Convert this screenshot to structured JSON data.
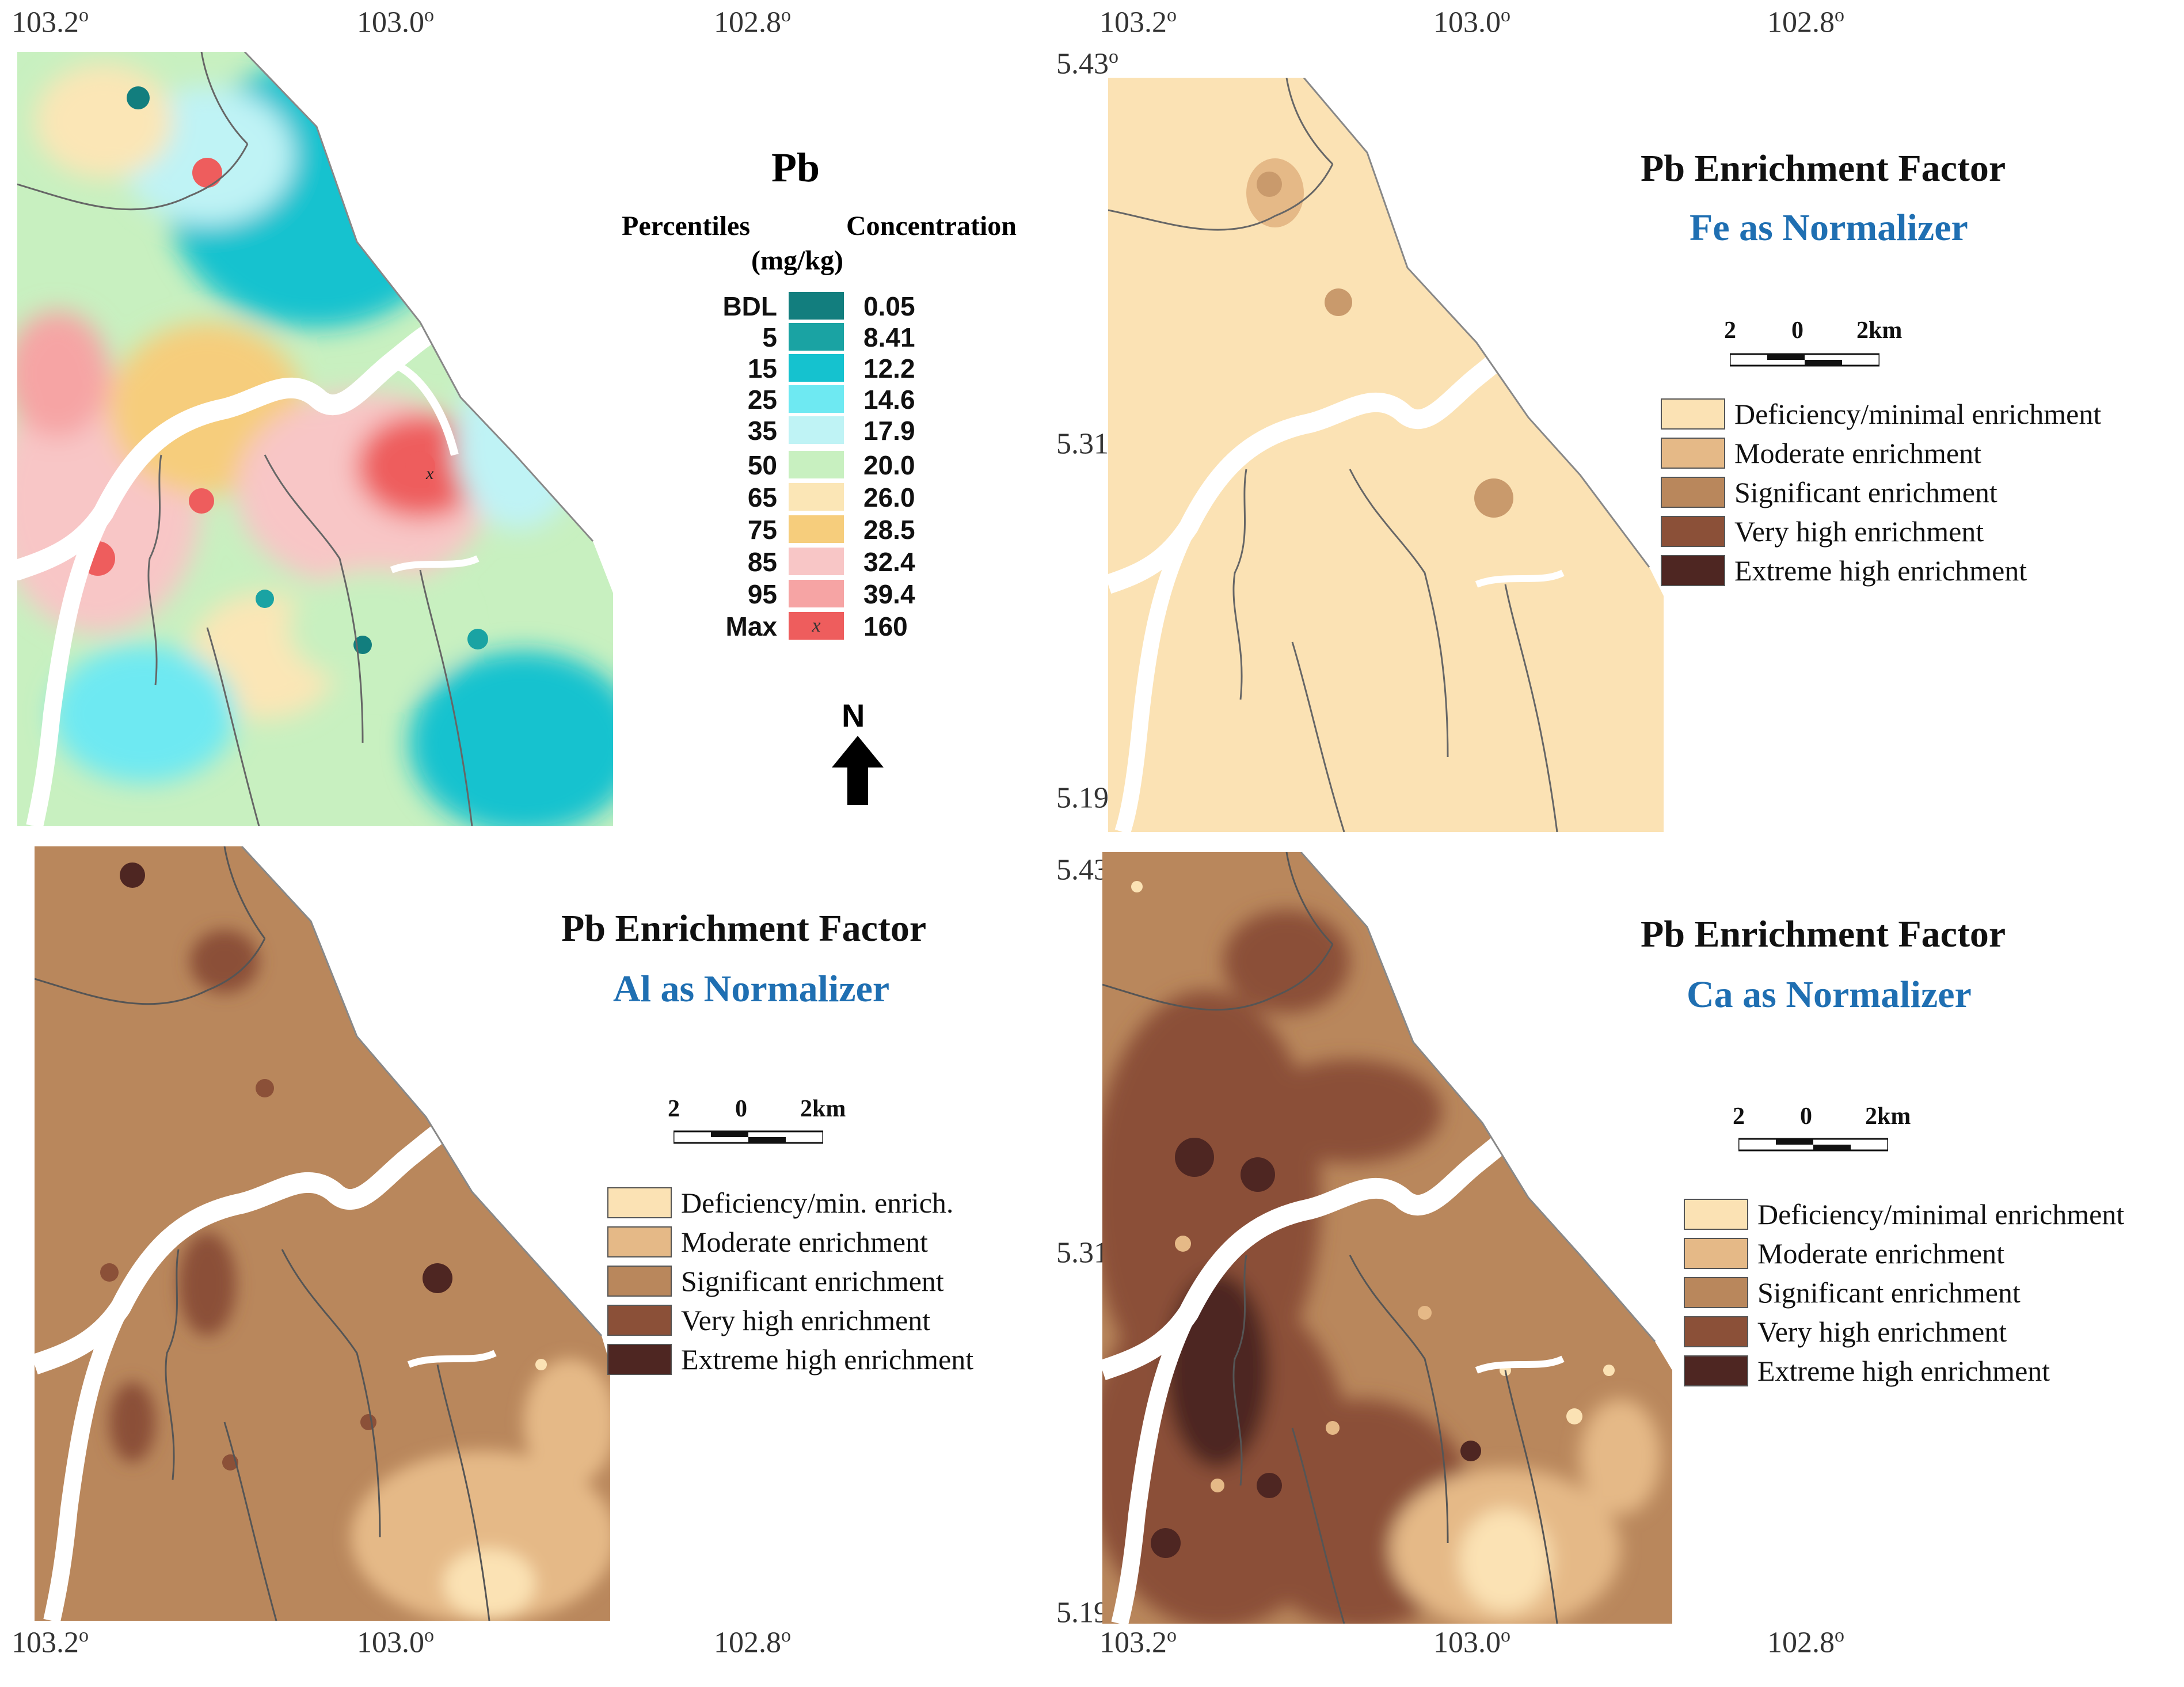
{
  "coords": {
    "lon": [
      "103.2o",
      "103.0o",
      "102.8o"
    ],
    "lat": [
      "5.43o",
      "5.31o",
      "5.19o"
    ]
  },
  "pb_map": {
    "title": "Pb",
    "col_percentiles": "Percentiles",
    "col_concentration": "Concentration",
    "col_unit": "(mg/kg)",
    "rows": [
      {
        "pct": "BDL",
        "val": "0.05",
        "color": "#127e7e"
      },
      {
        "pct": "5",
        "val": "8.41",
        "color": "#1aa3a3"
      },
      {
        "pct": "15",
        "val": "12.2",
        "color": "#15c2cf"
      },
      {
        "pct": "25",
        "val": "14.6",
        "color": "#6ee9f2"
      },
      {
        "pct": "35",
        "val": "17.9",
        "color": "#bff3f5"
      },
      {
        "pct": "50",
        "val": "20.0",
        "color": "#c8f0c0"
      },
      {
        "pct": "65",
        "val": "26.0",
        "color": "#fbe6b6"
      },
      {
        "pct": "75",
        "val": "28.5",
        "color": "#f6cd7c"
      },
      {
        "pct": "85",
        "val": "32.4",
        "color": "#f8c6c6"
      },
      {
        "pct": "95",
        "val": "39.4",
        "color": "#f6a4a4"
      },
      {
        "pct": "Max",
        "val": "160",
        "color": "#ee5d5d",
        "mark": "x"
      }
    ],
    "north": "N"
  },
  "fe_map": {
    "title": "Pb Enrichment Factor",
    "subtitle": "Fe as Normalizer",
    "scale": [
      "2",
      "0",
      "2km"
    ],
    "legend": [
      {
        "label": "Deficiency/minimal enrichment",
        "color": "#fbe2b4"
      },
      {
        "label": "Moderate enrichment",
        "color": "#e5b987"
      },
      {
        "label": "Significant enrichment",
        "color": "#b9875c"
      },
      {
        "label": "Very high enrichment",
        "color": "#8b5038"
      },
      {
        "label": "Extreme high enrichment",
        "color": "#4e2622"
      }
    ]
  },
  "al_map": {
    "title": "Pb Enrichment Factor",
    "subtitle": "Al as Normalizer",
    "scale": [
      "2",
      "0",
      "2km"
    ],
    "legend": [
      {
        "label": "Deficiency/min. enrich.",
        "color": "#fbe2b4"
      },
      {
        "label": "Moderate enrichment",
        "color": "#e5b987"
      },
      {
        "label": "Significant enrichment",
        "color": "#b9875c"
      },
      {
        "label": "Very high enrichment",
        "color": "#8b5038"
      },
      {
        "label": "Extreme high enrichment",
        "color": "#4e2622"
      }
    ]
  },
  "ca_map": {
    "title": "Pb Enrichment Factor",
    "subtitle": "Ca as Normalizer",
    "scale": [
      "2",
      "0",
      "2km"
    ],
    "legend": [
      {
        "label": "Deficiency/minimal enrichment",
        "color": "#fbe2b4"
      },
      {
        "label": "Moderate enrichment",
        "color": "#e5b987"
      },
      {
        "label": "Significant enrichment",
        "color": "#b9875c"
      },
      {
        "label": "Very high enrichment",
        "color": "#8b5038"
      },
      {
        "label": "Extreme high enrichment",
        "color": "#4e2622"
      }
    ]
  }
}
